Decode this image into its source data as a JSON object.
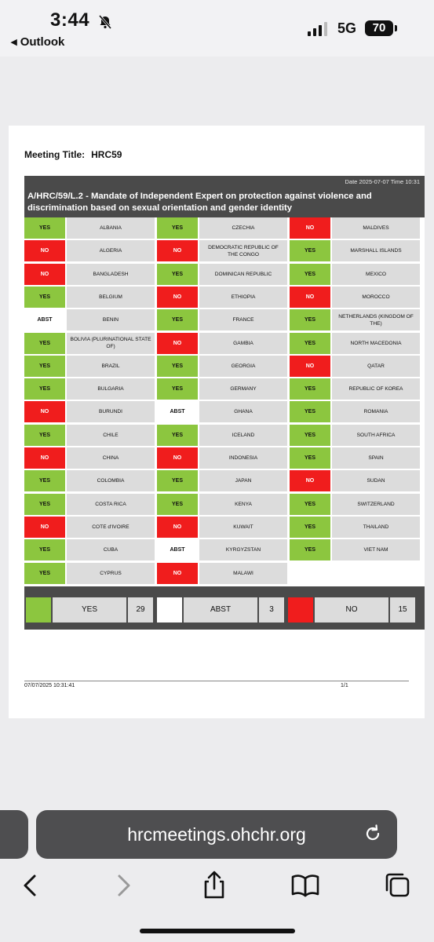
{
  "status_bar": {
    "time": "3:44",
    "back_app": "◂ Outlook",
    "network": "5G",
    "battery": "70"
  },
  "document": {
    "meeting_label": "Meeting Title:",
    "meeting_value": "HRC59",
    "date_time": "Date 2025-07-07  Time 10:31",
    "resolution_title": "A/HRC/59/L.2 - Mandate of Independent Expert on protection against violence and discrimination based on sexual orientation and gender identity",
    "columns": [
      [
        {
          "vote": "YES",
          "country": "ALBANIA"
        },
        {
          "vote": "NO",
          "country": "ALGERIA"
        },
        {
          "vote": "NO",
          "country": "BANGLADESH"
        },
        {
          "vote": "YES",
          "country": "BELGIUM"
        },
        {
          "vote": "ABST",
          "country": "BENIN"
        },
        {
          "vote": "YES",
          "country": "BOLIVIA (PLURINATIONAL STATE OF)"
        },
        {
          "vote": "YES",
          "country": "BRAZIL"
        },
        {
          "vote": "YES",
          "country": "BULGARIA"
        },
        {
          "vote": "NO",
          "country": "BURUNDI"
        },
        {
          "vote": "YES",
          "country": "CHILE"
        },
        {
          "vote": "NO",
          "country": "CHINA"
        },
        {
          "vote": "YES",
          "country": "COLOMBIA"
        },
        {
          "vote": "YES",
          "country": "COSTA RICA"
        },
        {
          "vote": "NO",
          "country": "COTE d'IVOIRE"
        },
        {
          "vote": "YES",
          "country": "CUBA"
        },
        {
          "vote": "YES",
          "country": "CYPRUS"
        }
      ],
      [
        {
          "vote": "YES",
          "country": "CZECHIA"
        },
        {
          "vote": "NO",
          "country": "DEMOCRATIC REPUBLIC OF THE CONGO"
        },
        {
          "vote": "YES",
          "country": "DOMINICAN REPUBLIC"
        },
        {
          "vote": "NO",
          "country": "ETHIOPIA"
        },
        {
          "vote": "YES",
          "country": "FRANCE"
        },
        {
          "vote": "NO",
          "country": "GAMBIA"
        },
        {
          "vote": "YES",
          "country": "GEORGIA"
        },
        {
          "vote": "YES",
          "country": "GERMANY"
        },
        {
          "vote": "ABST",
          "country": "GHANA"
        },
        {
          "vote": "YES",
          "country": "ICELAND"
        },
        {
          "vote": "NO",
          "country": "INDONESIA"
        },
        {
          "vote": "YES",
          "country": "JAPAN"
        },
        {
          "vote": "YES",
          "country": "KENYA"
        },
        {
          "vote": "NO",
          "country": "KUWAIT"
        },
        {
          "vote": "ABST",
          "country": "KYRGYZSTAN"
        },
        {
          "vote": "NO",
          "country": "MALAWI"
        }
      ],
      [
        {
          "vote": "NO",
          "country": "MALDIVES"
        },
        {
          "vote": "YES",
          "country": "MARSHALL ISLANDS"
        },
        {
          "vote": "YES",
          "country": "MEXICO"
        },
        {
          "vote": "NO",
          "country": "MOROCCO"
        },
        {
          "vote": "YES",
          "country": "NETHERLANDS (KINGDOM OF THE)"
        },
        {
          "vote": "YES",
          "country": "NORTH MACEDONIA"
        },
        {
          "vote": "NO",
          "country": "QATAR"
        },
        {
          "vote": "YES",
          "country": "REPUBLIC OF KOREA"
        },
        {
          "vote": "YES",
          "country": "ROMANIA"
        },
        {
          "vote": "YES",
          "country": "SOUTH AFRICA"
        },
        {
          "vote": "YES",
          "country": "SPAIN"
        },
        {
          "vote": "NO",
          "country": "SUDAN"
        },
        {
          "vote": "YES",
          "country": "SWITZERLAND"
        },
        {
          "vote": "YES",
          "country": "THAILAND"
        },
        {
          "vote": "YES",
          "country": "VIET NAM"
        }
      ]
    ],
    "summary": [
      {
        "label": "YES",
        "count": "29",
        "color": "#8cc63f"
      },
      {
        "label": "ABST",
        "count": "3",
        "color": "#ffffff"
      },
      {
        "label": "NO",
        "count": "15",
        "color": "#f01d1d"
      }
    ],
    "footer_datetime": "07/07/2025 10:31:41",
    "footer_page": "1/1"
  },
  "browser": {
    "url": "hrcmeetings.ohchr.org",
    "icons": [
      "back-icon",
      "forward-icon",
      "share-icon",
      "bookmarks-icon",
      "tabs-icon",
      "reload-icon"
    ]
  }
}
